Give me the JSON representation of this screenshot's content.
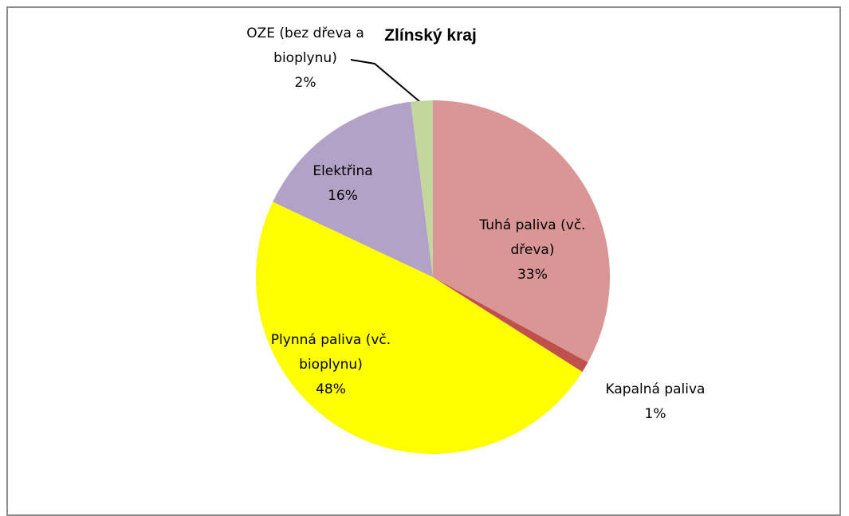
{
  "chart_data": {
    "type": "pie",
    "title": "Zlínský kraj",
    "categories": [
      "Tuhá paliva (vč. dřeva)",
      "Kapalná paliva",
      "Plynná paliva (vč. bioplynu)",
      "Elektřina",
      "OZE (bez dřeva a bioplynu)"
    ],
    "values": [
      33,
      1,
      48,
      16,
      2
    ],
    "value_labels": [
      "33%",
      "1%",
      "48%",
      "16%",
      "2%"
    ],
    "colors": [
      "#d99694",
      "#c0504d",
      "#ffff00",
      "#b3a2c7",
      "#c3d69b"
    ]
  }
}
